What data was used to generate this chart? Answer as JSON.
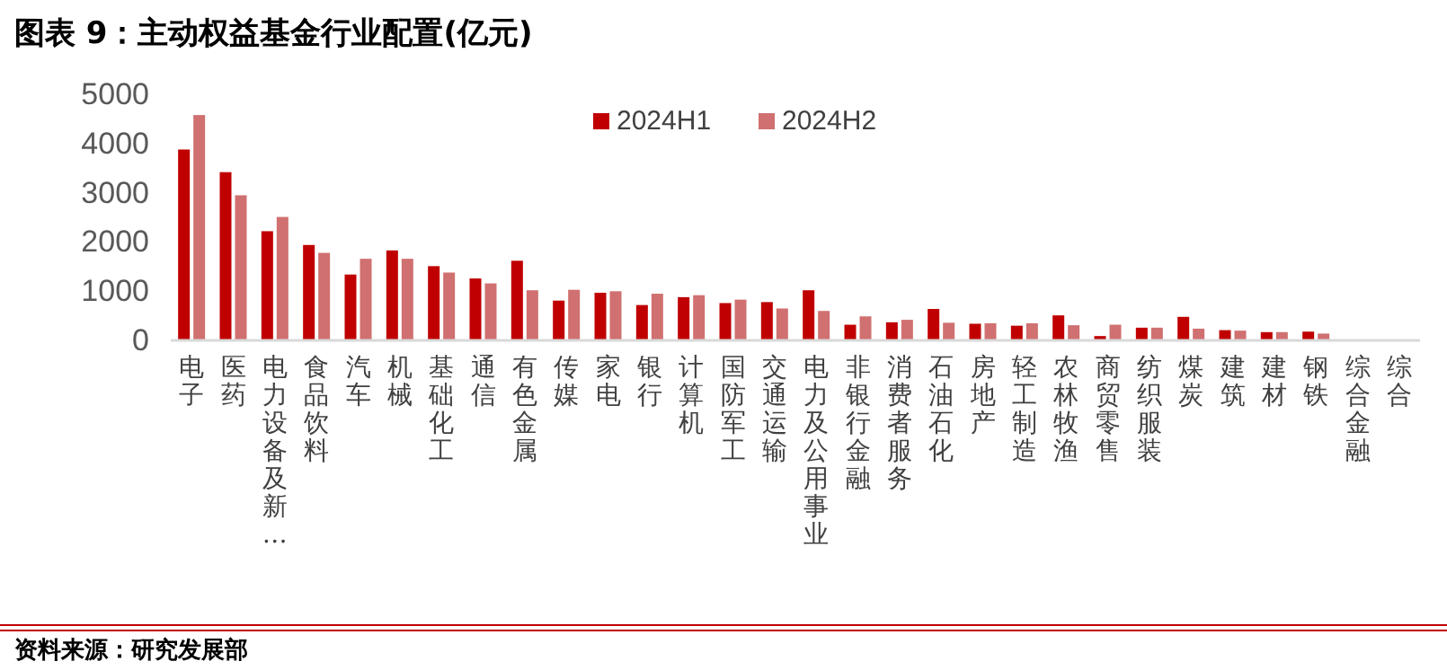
{
  "chart_data": {
    "type": "bar",
    "title": "图表 9：主动权益基金行业配置(亿元)",
    "categories": [
      "电子",
      "医药",
      "电力设备及新…",
      "食品饮料",
      "汽车",
      "机械",
      "基础化工",
      "通信",
      "有色金属",
      "传媒",
      "家电",
      "银行",
      "计算机",
      "国防军工",
      "交通运输",
      "电力及公用事业",
      "非银行金融",
      "消费者服务",
      "石油石化",
      "房地产",
      "轻工制造",
      "农林牧渔",
      "商贸零售",
      "纺织服装",
      "煤炭",
      "建筑",
      "建材",
      "钢铁",
      "综合金融",
      "综合"
    ],
    "series": [
      {
        "name": "2024H1",
        "color": "#c00000",
        "values": [
          3860,
          3400,
          2200,
          1920,
          1320,
          1810,
          1490,
          1240,
          1600,
          790,
          950,
          700,
          860,
          740,
          760,
          1000,
          300,
          350,
          620,
          320,
          280,
          490,
          70,
          240,
          460,
          190,
          150,
          160,
          null,
          null
        ]
      },
      {
        "name": "2024H2",
        "color": "#d07070",
        "values": [
          4560,
          2930,
          2490,
          1760,
          1640,
          1640,
          1360,
          1140,
          1000,
          1010,
          980,
          930,
          900,
          810,
          630,
          580,
          470,
          400,
          340,
          330,
          330,
          290,
          300,
          240,
          220,
          180,
          150,
          120,
          null,
          null
        ]
      }
    ],
    "ylim": [
      0,
      5000
    ],
    "yticks": [
      0,
      1000,
      2000,
      3000,
      4000,
      5000
    ],
    "grid": false,
    "legend": "top",
    "annotations": [
      "资料来源：研究发展部"
    ]
  }
}
